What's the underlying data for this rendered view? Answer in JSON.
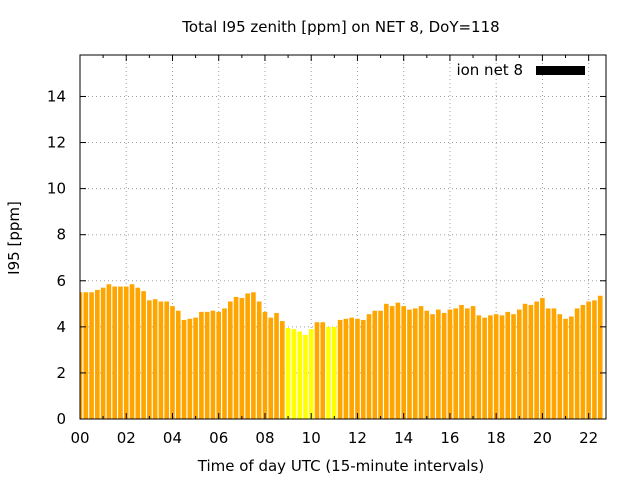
{
  "chart_data": {
    "type": "bar",
    "title": "Total I95 zenith [ppm] on NET 8, DoY=118",
    "xlabel": "Time of day UTC (15-minute intervals)",
    "ylabel": "I95 [ppm]",
    "xlim": [
      0,
      22.75
    ],
    "ylim": [
      0,
      15.8
    ],
    "x_ticks": [
      "00",
      "02",
      "04",
      "06",
      "08",
      "10",
      "12",
      "14",
      "16",
      "18",
      "20",
      "22"
    ],
    "y_ticks": [
      "0",
      "2",
      "4",
      "6",
      "8",
      "10",
      "12",
      "14"
    ],
    "grid": true,
    "legend": {
      "position": "top-right",
      "label": "ion net 8",
      "color": "#000000"
    },
    "bar_interval_hours": 0.25,
    "colors": {
      "default": "#ffa500",
      "highlight": "#ffff00"
    },
    "x": [
      0,
      0.25,
      0.5,
      0.75,
      1,
      1.25,
      1.5,
      1.75,
      2,
      2.25,
      2.5,
      2.75,
      3,
      3.25,
      3.5,
      3.75,
      4,
      4.25,
      4.5,
      4.75,
      5,
      5.25,
      5.5,
      5.75,
      6,
      6.25,
      6.5,
      6.75,
      7,
      7.25,
      7.5,
      7.75,
      8,
      8.25,
      8.5,
      8.75,
      9,
      9.25,
      9.5,
      9.75,
      10,
      10.25,
      10.5,
      10.75,
      11,
      11.25,
      11.5,
      11.75,
      12,
      12.25,
      12.5,
      12.75,
      13,
      13.25,
      13.5,
      13.75,
      14,
      14.25,
      14.5,
      14.75,
      15,
      15.25,
      15.5,
      15.75,
      16,
      16.25,
      16.5,
      16.75,
      17,
      17.25,
      17.5,
      17.75,
      18,
      18.25,
      18.5,
      18.75,
      19,
      19.25,
      19.5,
      19.75,
      20,
      20.25,
      20.5,
      20.75,
      21,
      21.25,
      21.5,
      21.75,
      22,
      22.25,
      22.5
    ],
    "values": [
      5.5,
      5.5,
      5.5,
      5.6,
      5.7,
      5.85,
      5.75,
      5.75,
      5.75,
      5.85,
      5.7,
      5.55,
      5.15,
      5.2,
      5.1,
      5.1,
      4.9,
      4.7,
      4.3,
      4.35,
      4.4,
      4.65,
      4.65,
      4.7,
      4.65,
      4.8,
      5.1,
      5.3,
      5.25,
      5.45,
      5.5,
      5.1,
      4.65,
      4.4,
      4.6,
      4.25,
      3.95,
      3.9,
      3.8,
      3.65,
      3.9,
      4.2,
      4.2,
      4.0,
      4.0,
      4.3,
      4.35,
      4.4,
      4.35,
      4.3,
      4.55,
      4.7,
      4.7,
      5.0,
      4.9,
      5.05,
      4.9,
      4.75,
      4.8,
      4.9,
      4.7,
      4.55,
      4.75,
      4.6,
      4.75,
      4.8,
      4.95,
      4.8,
      4.9,
      4.5,
      4.4,
      4.5,
      4.55,
      4.5,
      4.65,
      4.55,
      4.75,
      5.0,
      4.95,
      5.1,
      5.25,
      4.8,
      4.8,
      4.55,
      4.35,
      4.45,
      4.8,
      4.95,
      5.1,
      5.15,
      5.35
    ],
    "highlight": [
      0,
      0,
      0,
      0,
      0,
      0,
      0,
      0,
      0,
      0,
      0,
      0,
      0,
      0,
      0,
      0,
      0,
      0,
      0,
      0,
      0,
      0,
      0,
      0,
      0,
      0,
      0,
      0,
      0,
      0,
      0,
      0,
      0,
      0,
      0,
      0,
      1,
      1,
      1,
      1,
      1,
      0,
      0,
      1,
      1,
      0,
      0,
      0,
      0,
      0,
      0,
      0,
      0,
      0,
      0,
      0,
      0,
      0,
      0,
      0,
      0,
      0,
      0,
      0,
      0,
      0,
      0,
      0,
      0,
      0,
      0,
      0,
      0,
      0,
      0,
      0,
      0,
      0,
      0,
      0,
      0,
      0,
      0,
      0,
      0,
      0,
      0,
      0,
      0,
      0,
      0
    ]
  }
}
